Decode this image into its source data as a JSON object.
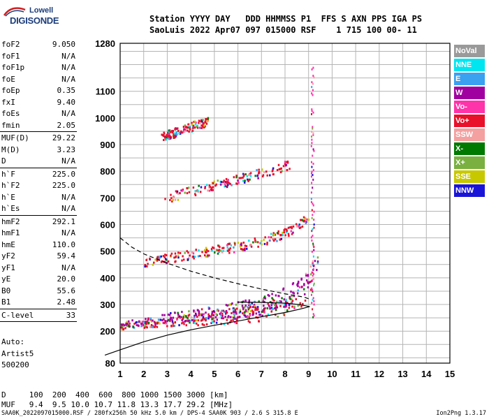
{
  "logo": {
    "line1": "Lowell",
    "line2": "DIGISONDE"
  },
  "header": {
    "line1": "Station YYYY DAY   DDD HHMMSS P1  FFS S AXN PPS IGA PS",
    "line2": "SaoLuis 2022 Apr07 097 015000 RSF    1 715 100 00- 11"
  },
  "params": [
    {
      "key": "foF2",
      "value": "9.050"
    },
    {
      "key": "foF1",
      "value": "N/A"
    },
    {
      "key": "foF1p",
      "value": "N/A"
    },
    {
      "key": "foE",
      "value": "N/A"
    },
    {
      "key": "foEp",
      "value": "0.35"
    },
    {
      "key": "fxI",
      "value": "9.40"
    },
    {
      "key": "foEs",
      "value": "N/A"
    },
    {
      "key": "fmin",
      "value": "2.05",
      "sep": true
    },
    {
      "key": "MUF(D)",
      "value": "29.22"
    },
    {
      "key": "M(D)",
      "value": "3.23"
    },
    {
      "key": "D",
      "value": "N/A",
      "sep": true
    },
    {
      "key": "h`F",
      "value": "225.0"
    },
    {
      "key": "h`F2",
      "value": "225.0"
    },
    {
      "key": "h`E",
      "value": "N/A"
    },
    {
      "key": "h`Es",
      "value": "N/A",
      "sep": true
    },
    {
      "key": "hmF2",
      "value": "292.1"
    },
    {
      "key": "hmF1",
      "value": "N/A"
    },
    {
      "key": "hmE",
      "value": "110.0"
    },
    {
      "key": "yF2",
      "value": "59.4"
    },
    {
      "key": "yF1",
      "value": "N/A"
    },
    {
      "key": "yE",
      "value": "20.0"
    },
    {
      "key": "B0",
      "value": "55.6"
    },
    {
      "key": "B1",
      "value": "2.48",
      "sep": true
    },
    {
      "key": "C-level",
      "value": "33",
      "sep": true
    }
  ],
  "auto": [
    "Auto:",
    "Artist5",
    "500200"
  ],
  "legend": [
    {
      "label": "NoVal",
      "color": "#9a9a9a"
    },
    {
      "label": "NNE",
      "color": "#00e5f0"
    },
    {
      "label": "E",
      "color": "#3aa0f0"
    },
    {
      "label": "W",
      "color": "#a000a0"
    },
    {
      "label": "Vo-",
      "color": "#ff33aa"
    },
    {
      "label": "Vo+",
      "color": "#e8102a"
    },
    {
      "label": "SSW",
      "color": "#f4a0a0"
    },
    {
      "label": "X-",
      "color": "#007a00"
    },
    {
      "label": "X+",
      "color": "#7ab040"
    },
    {
      "label": "SSE",
      "color": "#c8c800"
    },
    {
      "label": "NNW",
      "color": "#1a14d8"
    }
  ],
  "muf_table": {
    "line1": "D     100  200  400  600  800 1000 1500 3000 [km]",
    "line2": "MUF   9.4  9.5 10.0 10.7 11.8 13.3 17.7 29.2 [MHz]"
  },
  "footer": {
    "left": "SAA0K_2022097015000.RSF / 280fx256h 50 kHz 5.0 km / DPS-4 SAA0K 903 / 2.6 S 315.8 E",
    "right": "Ion2Png 1.3.17"
  },
  "chart_data": {
    "type": "scatter",
    "title": "",
    "xlabel": "",
    "ylabel": "",
    "xlim": [
      1,
      15
    ],
    "ylim": [
      80,
      1280
    ],
    "x_ticks": [
      1,
      2,
      3,
      4,
      5,
      6,
      7,
      8,
      9,
      10,
      11,
      12,
      13,
      14,
      15
    ],
    "y_ticks": [
      80,
      200,
      300,
      400,
      500,
      600,
      700,
      800,
      900,
      1000,
      1100,
      1280
    ],
    "grid": true,
    "traces": [
      {
        "name": "O-trace F2",
        "points": [
          [
            1.0,
            218
          ],
          [
            1.5,
            225
          ],
          [
            2.0,
            230
          ],
          [
            3.0,
            238
          ],
          [
            4.0,
            246
          ],
          [
            5.0,
            254
          ],
          [
            6.0,
            263
          ],
          [
            7.0,
            275
          ],
          [
            7.5,
            283
          ],
          [
            8.0,
            296
          ],
          [
            8.5,
            318
          ],
          [
            8.8,
            340
          ],
          [
            9.0,
            365
          ],
          [
            9.2,
            420
          ]
        ]
      },
      {
        "name": "X-trace F2",
        "points": [
          [
            1.0,
            228
          ],
          [
            2.0,
            240
          ],
          [
            3.0,
            252
          ],
          [
            4.0,
            262
          ],
          [
            5.0,
            272
          ],
          [
            6.0,
            285
          ],
          [
            7.0,
            300
          ],
          [
            8.0,
            330
          ],
          [
            8.5,
            360
          ],
          [
            9.0,
            400
          ],
          [
            9.4,
            460
          ]
        ]
      },
      {
        "name": "2F2 echo",
        "points": [
          [
            2.0,
            462
          ],
          [
            3.0,
            475
          ],
          [
            4.0,
            490
          ],
          [
            5.0,
            505
          ],
          [
            6.0,
            520
          ],
          [
            7.0,
            540
          ],
          [
            8.0,
            570
          ],
          [
            8.5,
            595
          ],
          [
            9.0,
            630
          ]
        ]
      },
      {
        "name": "3F2 echo",
        "points": [
          [
            2.8,
            700
          ],
          [
            3.5,
            715
          ],
          [
            4.5,
            740
          ],
          [
            5.5,
            760
          ],
          [
            6.5,
            785
          ],
          [
            7.5,
            810
          ],
          [
            8.2,
            830
          ]
        ]
      },
      {
        "name": "4F2 echo",
        "points": [
          [
            2.7,
            930
          ],
          [
            3.5,
            955
          ],
          [
            4.2,
            975
          ],
          [
            4.7,
            990
          ]
        ]
      },
      {
        "name": "vertical spread",
        "points": [
          [
            9.15,
            250
          ],
          [
            9.15,
            400
          ],
          [
            9.15,
            600
          ],
          [
            9.15,
            850
          ],
          [
            9.15,
            1050
          ],
          [
            9.2,
            1230
          ]
        ]
      }
    ],
    "profile": [
      [
        0.35,
        110
      ],
      [
        1.0,
        130
      ],
      [
        2.0,
        160
      ],
      [
        3.0,
        185
      ],
      [
        4.0,
        205
      ],
      [
        5.0,
        222
      ],
      [
        6.0,
        238
      ],
      [
        7.0,
        254
      ],
      [
        8.0,
        270
      ],
      [
        8.6,
        282
      ],
      [
        9.05,
        292
      ],
      [
        8.6,
        300
      ],
      [
        8.0,
        305
      ],
      [
        7.0,
        308
      ],
      [
        6.0,
        309
      ]
    ],
    "model_curve": [
      [
        1.0,
        550
      ],
      [
        1.5,
        515
      ],
      [
        2.0,
        490
      ],
      [
        3.0,
        455
      ],
      [
        4.0,
        425
      ],
      [
        5.0,
        400
      ],
      [
        6.0,
        378
      ],
      [
        7.0,
        358
      ],
      [
        8.0,
        340
      ],
      [
        8.8,
        328
      ],
      [
        9.05,
        320
      ]
    ]
  }
}
